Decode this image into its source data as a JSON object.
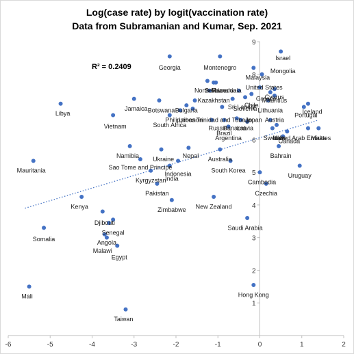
{
  "chart_data": {
    "type": "scatter",
    "title": "Log(case rate) by logit(vaccination rate)",
    "subtitle": "Data from Subramanian and Kumar, Sep. 2021",
    "annotation": "R² = 0.2409",
    "xlim": [
      -6,
      2
    ],
    "ylim": [
      0,
      9
    ],
    "xticks": [
      -6,
      -5,
      -4,
      -3,
      -2,
      -1,
      0,
      1,
      2
    ],
    "yticks": [
      1,
      2,
      3,
      4,
      5,
      6,
      7,
      8,
      9
    ],
    "trendline": {
      "style": "dotted",
      "x": [
        -5.6,
        1.4
      ],
      "y": [
        3.9,
        6.6
      ]
    },
    "grid": false,
    "colors": {
      "marker": "#4472c4",
      "trendline": "#4472c4"
    },
    "points": [
      {
        "x": -5.5,
        "y": 1.5,
        "label": "Mali"
      },
      {
        "x": -5.4,
        "y": 5.35,
        "label": "Mauritania"
      },
      {
        "x": -5.15,
        "y": 3.3,
        "label": "Somalia"
      },
      {
        "x": -4.75,
        "y": 7.1,
        "label": "Libya"
      },
      {
        "x": -4.25,
        "y": 4.25,
        "label": "Kenya"
      },
      {
        "x": -3.75,
        "y": 3.8,
        "label": "Djibouti"
      },
      {
        "x": -3.6,
        "y": 3.45,
        "label": "Senegal"
      },
      {
        "x": -3.7,
        "y": 3.1,
        "label": "Angola"
      },
      {
        "x": -3.5,
        "y": 3.55,
        "label": ""
      },
      {
        "x": -3.65,
        "y": 3.0,
        "label": "Malawi"
      },
      {
        "x": -3.4,
        "y": 2.75,
        "label": "Egypt"
      },
      {
        "x": -3.5,
        "y": 6.75,
        "label": "Vietnam"
      },
      {
        "x": -3.2,
        "y": 0.8,
        "label": "Taiwan"
      },
      {
        "x": -3.0,
        "y": 7.25,
        "label": "Jamaica"
      },
      {
        "x": -3.1,
        "y": 5.8,
        "label": "Namibia"
      },
      {
        "x": -2.85,
        "y": 5.4,
        "label": "Sao Tome and Principe"
      },
      {
        "x": -2.6,
        "y": 5.05,
        "label": "Kyrgyzstan"
      },
      {
        "x": -2.45,
        "y": 4.65,
        "label": "Pakistan"
      },
      {
        "x": -2.4,
        "y": 7.2,
        "label": "Botswana"
      },
      {
        "x": -2.35,
        "y": 5.7,
        "label": "Ukraine"
      },
      {
        "x": -2.15,
        "y": 8.55,
        "label": "Georgia"
      },
      {
        "x": -2.15,
        "y": 6.75,
        "label": "South Africa"
      },
      {
        "x": -2.15,
        "y": 5.2,
        "label": "Indonesia"
      },
      {
        "x": -2.1,
        "y": 4.15,
        "label": "Zimbabwe"
      },
      {
        "x": -1.95,
        "y": 5.35,
        "label": "India"
      },
      {
        "x": -1.9,
        "y": 6.9,
        "label": "Philippines"
      },
      {
        "x": -1.75,
        "y": 7.05,
        "label": "Bulgaria"
      },
      {
        "x": -1.7,
        "y": 5.75,
        "label": "Nepal"
      },
      {
        "x": -1.6,
        "y": 6.95,
        "label": "Lebanon"
      },
      {
        "x": -1.55,
        "y": 7.2,
        "label": "Kazakhstan"
      },
      {
        "x": -1.25,
        "y": 7.8,
        "label": "North Macedonia"
      },
      {
        "x": -1.1,
        "y": 7.75,
        "label": "Serbia"
      },
      {
        "x": -1.2,
        "y": 7.5,
        "label": "Romania"
      },
      {
        "x": -1.05,
        "y": 7.75,
        "label": "Slovakia"
      },
      {
        "x": -1.15,
        "y": 6.6,
        "label": "Trinidad and Tobago"
      },
      {
        "x": -1.1,
        "y": 4.25,
        "label": "New Zealand"
      },
      {
        "x": -0.95,
        "y": 8.55,
        "label": "Montenegro"
      },
      {
        "x": -0.95,
        "y": 5.7,
        "label": "Australia"
      },
      {
        "x": -0.9,
        "y": 7.0,
        "label": "Russia"
      },
      {
        "x": -0.85,
        "y": 6.6,
        "label": "Brazil"
      },
      {
        "x": -0.75,
        "y": 6.4,
        "label": "Argentina"
      },
      {
        "x": -0.7,
        "y": 5.35,
        "label": "South Korea"
      },
      {
        "x": -0.65,
        "y": 7.25,
        "label": "Sri Lanka"
      },
      {
        "x": -0.55,
        "y": 6.65,
        "label": "Panama"
      },
      {
        "x": -0.5,
        "y": 7.5,
        "label": "Slovenia"
      },
      {
        "x": -0.45,
        "y": 6.6,
        "label": "Latvia"
      },
      {
        "x": -0.35,
        "y": 7.3,
        "label": "Chile"
      },
      {
        "x": -0.3,
        "y": 6.55,
        "label": "Japan"
      },
      {
        "x": -0.3,
        "y": 3.6,
        "label": "Saudi Arabia"
      },
      {
        "x": -0.2,
        "y": 7.4,
        "label": "Estonia"
      },
      {
        "x": -0.15,
        "y": 8.2,
        "label": "Malaysia"
      },
      {
        "x": -0.15,
        "y": 1.55,
        "label": "Hong Kong"
      },
      {
        "x": 0.0,
        "y": 7.6,
        "label": "United States"
      },
      {
        "x": 0.0,
        "y": 5.0,
        "label": "Cambodia"
      },
      {
        "x": 0.05,
        "y": 8.0,
        "label": "Mongolia"
      },
      {
        "x": 0.15,
        "y": 4.65,
        "label": "Czechia"
      },
      {
        "x": 0.2,
        "y": 7.2,
        "label": "Lithuania"
      },
      {
        "x": 0.25,
        "y": 6.6,
        "label": "Austria"
      },
      {
        "x": 0.25,
        "y": 7.45,
        "label": "Greece"
      },
      {
        "x": 0.3,
        "y": 6.35,
        "label": "Sweden"
      },
      {
        "x": 0.35,
        "y": 7.55,
        "label": "Cyprus"
      },
      {
        "x": 0.35,
        "y": 7.35,
        "label": "Mauritius"
      },
      {
        "x": 0.4,
        "y": 6.45,
        "label": "Italy"
      },
      {
        "x": 0.45,
        "y": 5.8,
        "label": "Bahrain"
      },
      {
        "x": 0.5,
        "y": 8.7,
        "label": "Israel"
      },
      {
        "x": 0.55,
        "y": 6.1,
        "label": "Canada"
      },
      {
        "x": 0.65,
        "y": 6.25,
        "label": "United Arab Emirates"
      },
      {
        "x": 0.95,
        "y": 5.2,
        "label": "Uruguay"
      },
      {
        "x": 1.05,
        "y": 7.0,
        "label": "Portugal"
      },
      {
        "x": 1.15,
        "y": 7.1,
        "label": "Iceland"
      },
      {
        "x": 1.15,
        "y": 6.35,
        "label": "Malta"
      },
      {
        "x": 1.4,
        "y": 6.35,
        "label": ""
      }
    ],
    "labels": [
      {
        "text": "Mali",
        "x": -5.55,
        "y": 1.2
      },
      {
        "text": "Mauritania",
        "x": -5.45,
        "y": 5.05
      },
      {
        "text": "Somalia",
        "x": -5.15,
        "y": 2.95
      },
      {
        "text": "Libya",
        "x": -4.7,
        "y": 6.8
      },
      {
        "text": "Kenya",
        "x": -4.3,
        "y": 3.95
      },
      {
        "text": "Djibouti",
        "x": -3.7,
        "y": 3.45
      },
      {
        "text": "Senegal",
        "x": -3.5,
        "y": 3.15
      },
      {
        "text": "Angola",
        "x": -3.65,
        "y": 2.85
      },
      {
        "text": "Malawi",
        "x": -3.75,
        "y": 2.6
      },
      {
        "text": "Egypt",
        "x": -3.35,
        "y": 2.4
      },
      {
        "text": "Vietnam",
        "x": -3.45,
        "y": 6.4
      },
      {
        "text": "Taiwan",
        "x": -3.25,
        "y": 0.5
      },
      {
        "text": "Jamaica",
        "x": -2.95,
        "y": 6.95
      },
      {
        "text": "Namibia",
        "x": -3.15,
        "y": 5.5
      },
      {
        "text": "Sao Tome and Principe",
        "x": -2.85,
        "y": 5.15
      },
      {
        "text": "Kyrgyzstan",
        "x": -2.6,
        "y": 4.75
      },
      {
        "text": "Pakistan",
        "x": -2.45,
        "y": 4.35
      },
      {
        "text": "Botswana",
        "x": -2.35,
        "y": 6.9
      },
      {
        "text": "Ukraine",
        "x": -2.3,
        "y": 5.4
      },
      {
        "text": "Georgia",
        "x": -2.15,
        "y": 8.2
      },
      {
        "text": "South Africa",
        "x": -2.15,
        "y": 6.45
      },
      {
        "text": "Indonesia",
        "x": -1.95,
        "y": 4.95
      },
      {
        "text": "Zimbabwe",
        "x": -2.1,
        "y": 3.85
      },
      {
        "text": "India",
        "x": -2.1,
        "y": 4.8
      },
      {
        "text": "Philippines",
        "x": -1.9,
        "y": 6.6
      },
      {
        "text": "Bulgaria",
        "x": -1.75,
        "y": 6.9
      },
      {
        "text": "Nepal",
        "x": -1.65,
        "y": 5.5
      },
      {
        "text": "Lebanon",
        "x": -1.65,
        "y": 6.6
      },
      {
        "text": "Kazakhstan",
        "x": -1.1,
        "y": 7.2
      },
      {
        "text": "North Macedonia",
        "x": -1.0,
        "y": 7.5
      },
      {
        "text": "Serbia",
        "x": -1.1,
        "y": 7.5
      },
      {
        "text": "Romania",
        "x": -0.85,
        "y": 7.5
      },
      {
        "text": "Trinidad and Tobago",
        "x": -0.85,
        "y": 6.6
      },
      {
        "text": "New Zealand",
        "x": -1.1,
        "y": 3.95
      },
      {
        "text": "Montenegro",
        "x": -0.95,
        "y": 8.2
      },
      {
        "text": "Australia",
        "x": -0.95,
        "y": 5.4
      },
      {
        "text": "Russia",
        "x": -1.0,
        "y": 6.35
      },
      {
        "text": "Brazil",
        "x": -0.85,
        "y": 6.2
      },
      {
        "text": "Argentina",
        "x": -0.75,
        "y": 6.05
      },
      {
        "text": "South Korea",
        "x": -0.75,
        "y": 5.05
      },
      {
        "text": "Sri Lanka",
        "x": -0.45,
        "y": 7.0
      },
      {
        "text": "Panama",
        "x": -0.6,
        "y": 6.35
      },
      {
        "text": "Slovenia",
        "x": -0.35,
        "y": 6.95
      },
      {
        "text": "Latvia",
        "x": -0.35,
        "y": 6.35
      },
      {
        "text": "Chile",
        "x": -0.2,
        "y": 7.05
      },
      {
        "text": "Japan",
        "x": -0.15,
        "y": 6.6
      },
      {
        "text": "Saudi Arabia",
        "x": -0.35,
        "y": 3.3
      },
      {
        "text": "Malaysia",
        "x": -0.05,
        "y": 7.9
      },
      {
        "text": "Hong Kong",
        "x": -0.15,
        "y": 1.25
      },
      {
        "text": "United States",
        "x": 0.1,
        "y": 7.6
      },
      {
        "text": "Cambodia",
        "x": 0.05,
        "y": 4.7
      },
      {
        "text": "Mongolia",
        "x": 0.55,
        "y": 8.1
      },
      {
        "text": "Czechia",
        "x": 0.15,
        "y": 4.35
      },
      {
        "text": "Lithuania",
        "x": 0.25,
        "y": 6.9
      },
      {
        "text": "Austria",
        "x": 0.35,
        "y": 6.6
      },
      {
        "text": "Greece",
        "x": 0.15,
        "y": 7.25
      },
      {
        "text": "Sweden",
        "x": 0.35,
        "y": 6.05
      },
      {
        "text": "Cyprus",
        "x": 0.35,
        "y": 7.3
      },
      {
        "text": "Mauritius",
        "x": 0.35,
        "y": 7.2
      },
      {
        "text": "Italy",
        "x": 0.45,
        "y": 6.05
      },
      {
        "text": "Bahrain",
        "x": 0.5,
        "y": 5.5
      },
      {
        "text": "Israel",
        "x": 0.55,
        "y": 8.5
      },
      {
        "text": "Canada",
        "x": 0.7,
        "y": 5.95
      },
      {
        "text": "United Arab Emirates",
        "x": 1.0,
        "y": 6.05
      },
      {
        "text": "Uruguay",
        "x": 0.95,
        "y": 4.9
      },
      {
        "text": "Portugal",
        "x": 1.1,
        "y": 6.75
      },
      {
        "text": "Iceland",
        "x": 1.25,
        "y": 6.85
      },
      {
        "text": "Malta",
        "x": 1.4,
        "y": 6.05
      }
    ]
  }
}
